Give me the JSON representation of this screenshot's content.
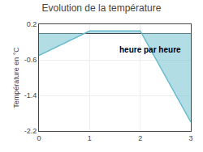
{
  "chart_data": {
    "type": "area",
    "title": "Evolution de la température",
    "y_label": "Température en °C",
    "x": [
      0,
      1,
      2,
      3
    ],
    "series": [
      {
        "name": "Température en °C",
        "color": "#66bbcc",
        "values": [
          -0.5,
          0.05,
          0.05,
          -2.0
        ]
      }
    ],
    "xlim": [
      0,
      3
    ],
    "xticks": [
      0,
      1,
      2,
      3
    ],
    "ylim": [
      -2.2,
      0.2
    ],
    "yticks": [
      0.2,
      -0.6,
      -1.4,
      -2.2
    ],
    "grid": true,
    "annotations": [
      {
        "text": "heure par heure",
        "x": 1.55,
        "y": -0.38
      }
    ]
  }
}
